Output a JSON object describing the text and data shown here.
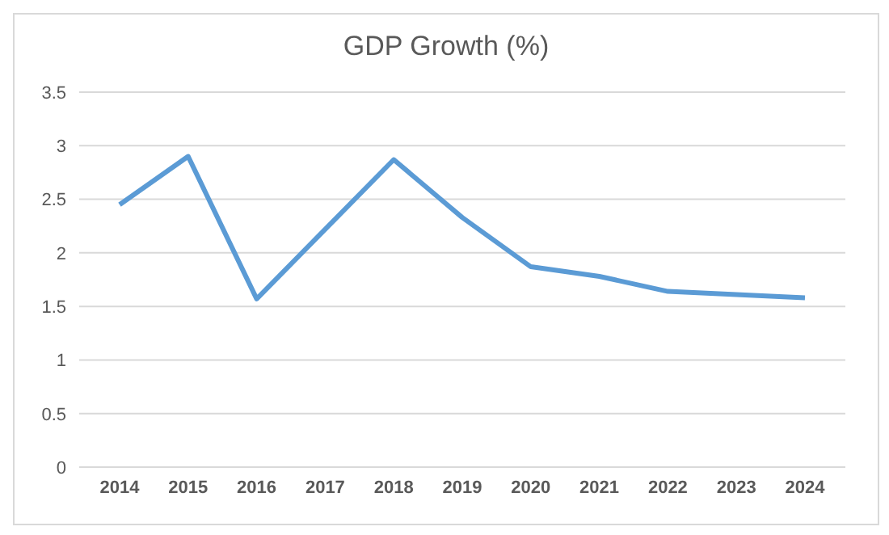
{
  "chart_data": {
    "type": "line",
    "title": "GDP Growth (%)",
    "categories": [
      "2014",
      "2015",
      "2016",
      "2017",
      "2018",
      "2019",
      "2020",
      "2021",
      "2022",
      "2023",
      "2024"
    ],
    "series": [
      {
        "color": "#5b9bd5",
        "values": [
          2.45,
          2.9,
          1.57,
          2.22,
          2.87,
          2.33,
          1.87,
          1.78,
          1.64,
          1.61,
          1.58
        ]
      }
    ],
    "ylim": [
      0,
      3.5
    ],
    "yticks": [
      0,
      0.5,
      1,
      1.5,
      2,
      2.5,
      3,
      3.5
    ],
    "grid": "y",
    "legend": false,
    "marker": "none",
    "line_style": "solid"
  }
}
